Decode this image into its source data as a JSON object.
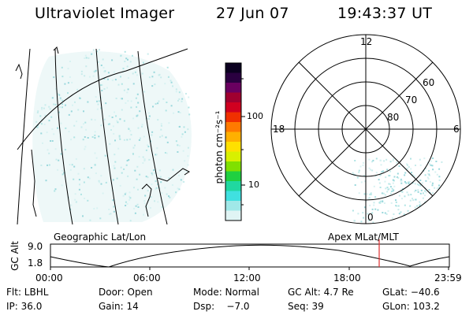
{
  "header": {
    "title": "Ultraviolet Imager",
    "date": "27 Jun 07",
    "time": "19:43:37 UT"
  },
  "colorbar": {
    "unit_label": "photon cm⁻²s⁻¹",
    "ticks": [
      "100",
      "10"
    ],
    "colors": [
      "#0b0020",
      "#2a0040",
      "#6a0060",
      "#a00030",
      "#d00020",
      "#f03000",
      "#ff7a00",
      "#ffb000",
      "#ffe000",
      "#d8f000",
      "#80e000",
      "#20d040",
      "#20d8a0",
      "#40e0e0",
      "#a0e8e8",
      "#e0f4f4"
    ]
  },
  "polar": {
    "mlt_labels": [
      "12",
      "18",
      "6",
      "0"
    ],
    "lat_labels": [
      "60",
      "70",
      "80"
    ]
  },
  "panel_labels": {
    "left": "Geographic Lat/Lon",
    "right": "Apex  MLat/MLT"
  },
  "altitude_plot": {
    "ylabel": "GC Alt",
    "yticks": [
      "9.0",
      "1.8"
    ],
    "xticks": [
      "00:00",
      "06:00",
      "12:00",
      "18:00",
      "23:59"
    ],
    "marker_color": "#e03030"
  },
  "info": {
    "row1": [
      "Flt: LBHL",
      "Door: Open",
      "Mode: Normal",
      "GC Alt: 4.7 Re",
      "GLat: −40.6"
    ],
    "row2": [
      "IP: 36.0",
      "Gain: 14",
      "Dsp:    −7.0",
      "Seq: 39",
      "GLon: 103.2"
    ]
  }
}
